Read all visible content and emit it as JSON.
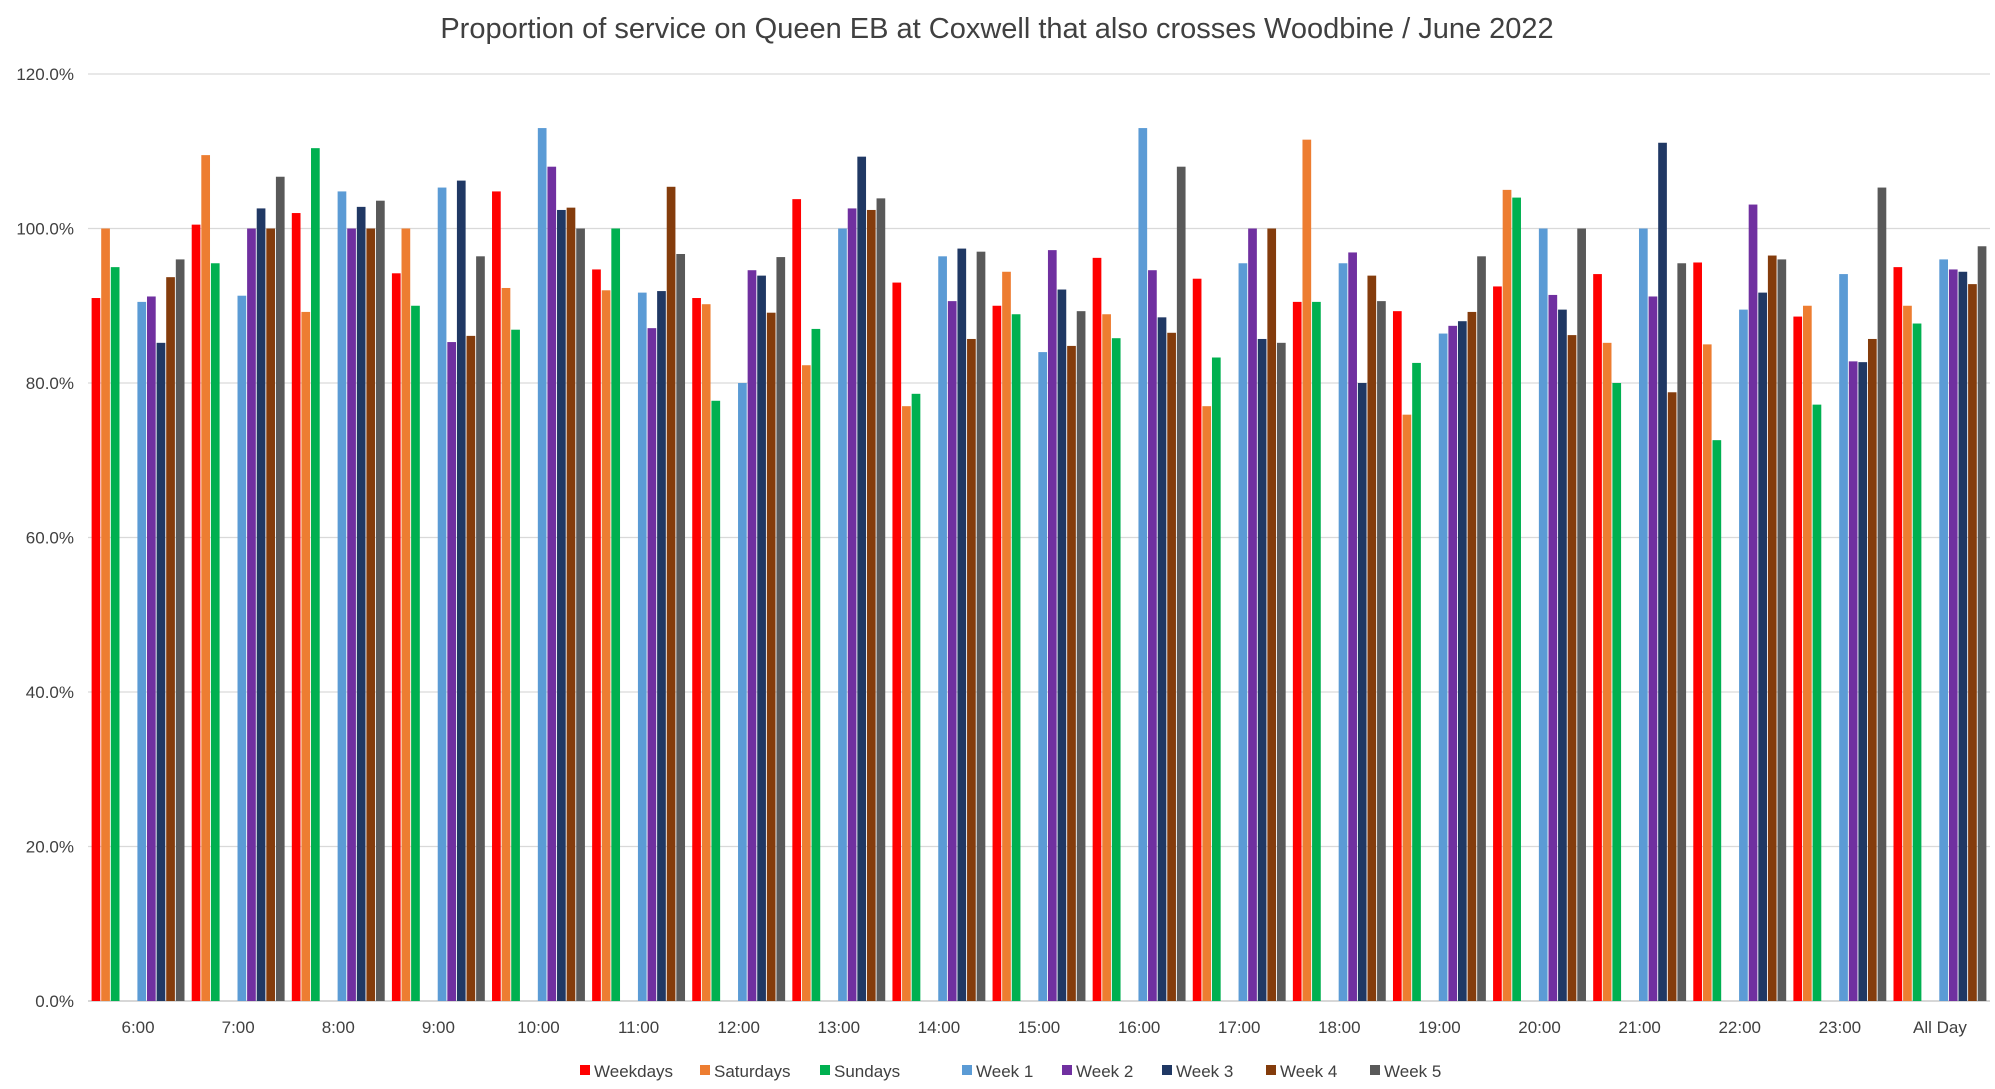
{
  "chart_data": {
    "type": "bar",
    "title": "Proportion of service on Queen EB at Coxwell that also crosses Woodbine / June 2022",
    "xlabel": "",
    "ylabel": "",
    "ylim": [
      0,
      120
    ],
    "y_tick_values": [
      0,
      20,
      40,
      60,
      80,
      100,
      120
    ],
    "y_tick_labels": [
      "0.0%",
      "20.0%",
      "40.0%",
      "60.0%",
      "80.0%",
      "100.0%",
      "120.0%"
    ],
    "grid": true,
    "legend_position": "bottom",
    "categories": [
      "6:00",
      "7:00",
      "8:00",
      "9:00",
      "10:00",
      "11:00",
      "12:00",
      "13:00",
      "14:00",
      "15:00",
      "16:00",
      "17:00",
      "18:00",
      "19:00",
      "20:00",
      "21:00",
      "22:00",
      "23:00",
      "All Day"
    ],
    "series": [
      {
        "name": "Weekdays",
        "color": "#ff0000",
        "values": [
          91.0,
          100.5,
          102.0,
          94.2,
          104.8,
          94.7,
          91.0,
          103.8,
          93.0,
          90.0,
          96.2,
          93.5,
          90.5,
          89.3,
          92.5,
          94.1,
          95.6,
          88.6,
          95.0
        ]
      },
      {
        "name": "Saturdays",
        "color": "#ed7d31",
        "values": [
          100.0,
          109.5,
          89.2,
          100.0,
          92.3,
          92.0,
          90.2,
          82.3,
          77.0,
          94.4,
          88.9,
          77.0,
          111.5,
          75.9,
          105.0,
          85.2,
          85.0,
          90.0,
          90.0
        ]
      },
      {
        "name": "Sundays",
        "color": "#00b050",
        "values": [
          95.0,
          95.5,
          110.4,
          90.0,
          86.9,
          100.0,
          77.7,
          87.0,
          78.6,
          88.9,
          85.8,
          83.3,
          90.5,
          82.6,
          104.0,
          80.0,
          72.6,
          77.2,
          87.7
        ]
      },
      {
        "name": "Week 1",
        "color": "#5b9bd5",
        "values": [
          90.5,
          91.3,
          104.8,
          105.3,
          113.0,
          91.7,
          80.0,
          100.0,
          96.4,
          84.0,
          113.0,
          95.5,
          95.5,
          86.4,
          100.0,
          100.0,
          89.5,
          94.1,
          96.0
        ]
      },
      {
        "name": "Week 2",
        "color": "#7030a0",
        "values": [
          91.2,
          100.0,
          100.0,
          85.3,
          108.0,
          87.1,
          94.6,
          102.6,
          90.6,
          97.2,
          94.6,
          100.0,
          96.9,
          87.4,
          91.4,
          91.2,
          103.1,
          82.8,
          94.7
        ]
      },
      {
        "name": "Week 3",
        "color": "#203864",
        "values": [
          85.2,
          102.6,
          102.8,
          106.2,
          102.4,
          91.9,
          93.9,
          109.3,
          97.4,
          92.1,
          88.5,
          85.7,
          80.0,
          88.0,
          89.5,
          111.1,
          91.7,
          82.7,
          94.4
        ]
      },
      {
        "name": "Week 4",
        "color": "#843c0c",
        "values": [
          93.7,
          100.0,
          100.0,
          86.1,
          102.7,
          105.4,
          89.1,
          102.4,
          85.7,
          84.8,
          86.5,
          100.0,
          93.9,
          89.2,
          86.2,
          78.8,
          96.5,
          85.7,
          92.8
        ]
      },
      {
        "name": "Week 5",
        "color": "#595959",
        "values": [
          96.0,
          106.7,
          103.6,
          96.4,
          100.0,
          96.7,
          96.3,
          103.9,
          97.0,
          89.3,
          108.0,
          85.2,
          90.6,
          96.4,
          100.0,
          95.5,
          96.0,
          105.3,
          97.7
        ]
      }
    ]
  }
}
